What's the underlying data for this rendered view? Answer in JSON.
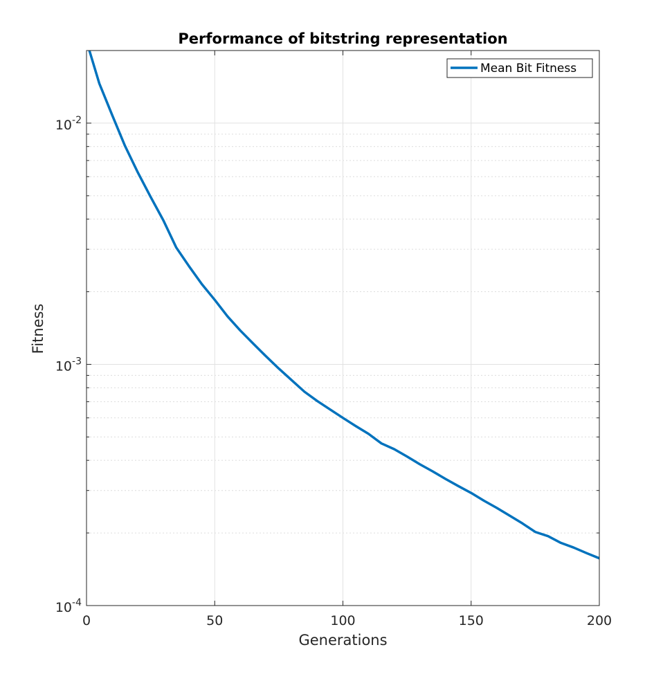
{
  "chart_data": {
    "type": "line",
    "title": "Performance of bitstring representation",
    "xlabel": "Generations",
    "ylabel": "Fitness",
    "xlim": [
      0,
      200
    ],
    "ylim": [
      0.0001,
      0.02
    ],
    "yscale": "log",
    "grid": true,
    "legend_position": "top-right",
    "x_ticks": [
      {
        "value": 0,
        "label": "0"
      },
      {
        "value": 50,
        "label": "50"
      },
      {
        "value": 100,
        "label": "100"
      },
      {
        "value": 150,
        "label": "150"
      },
      {
        "value": 200,
        "label": "200"
      }
    ],
    "y_ticks": [
      {
        "value": 0.0001,
        "base": "10",
        "exp": "-4"
      },
      {
        "value": 0.001,
        "base": "10",
        "exp": "-3"
      },
      {
        "value": 0.01,
        "base": "10",
        "exp": "-2"
      }
    ],
    "series": [
      {
        "name": "Mean Bit Fitness",
        "color": "#0072BD",
        "x": [
          1,
          5,
          10,
          15,
          20,
          25,
          30,
          35,
          40,
          45,
          50,
          55,
          60,
          65,
          70,
          75,
          80,
          85,
          90,
          95,
          100,
          105,
          110,
          115,
          120,
          125,
          130,
          135,
          140,
          145,
          150,
          155,
          160,
          165,
          170,
          175,
          180,
          185,
          190,
          195,
          200
        ],
        "y": [
          0.0202,
          0.0146,
          0.0108,
          0.00805,
          0.00625,
          0.00495,
          0.00395,
          0.00305,
          0.00255,
          0.00215,
          0.00185,
          0.00158,
          0.00138,
          0.00122,
          0.00108,
          0.00096,
          0.00086,
          0.00077,
          0.000705,
          0.00065,
          0.0006,
          0.000555,
          0.000515,
          0.00047,
          0.000445,
          0.000415,
          0.000385,
          0.00036,
          0.000335,
          0.000313,
          0.000293,
          0.000272,
          0.000254,
          0.000236,
          0.000219,
          0.000202,
          0.000194,
          0.000182,
          0.000174,
          0.000165,
          0.000157
        ]
      }
    ]
  }
}
